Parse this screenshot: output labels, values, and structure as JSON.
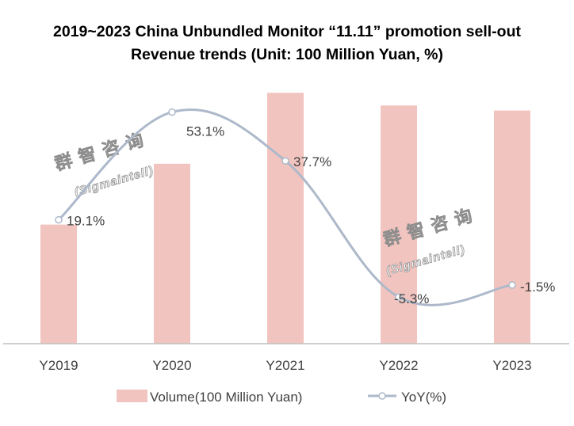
{
  "title_line1": "2019~2023 China Unbundled Monitor “11.11” promotion sell-out",
  "title_line2": "Revenue trends (Unit: 100 Million Yuan, %)",
  "watermark": {
    "chinese": "群智咨询",
    "english": "(Sigmaintell)"
  },
  "colors": {
    "bar": "#f2c4bf",
    "line": "#adb9ca",
    "marker_fill": "#ffffff",
    "axis": "#bfbfbf"
  },
  "chart_data": {
    "type": "bar",
    "categories": [
      "Y2019",
      "Y2020",
      "Y2021",
      "Y2022",
      "Y2023"
    ],
    "series": [
      {
        "name": "Volume(100 Million Yuan)",
        "type": "bar",
        "axis": "left",
        "values": [
          47,
          71,
          99,
          94,
          92
        ]
      },
      {
        "name": "YoY(%)",
        "type": "line",
        "axis": "right",
        "smooth": true,
        "marker": "circle",
        "values": [
          19.1,
          53.1,
          37.7,
          -5.3,
          -1.5
        ],
        "labels": [
          "19.1%",
          "53.1%",
          "37.7%",
          "-5.3%",
          "-1.5%"
        ]
      }
    ],
    "left_axis_range": [
      0,
      100
    ],
    "right_axis_range": [
      -20,
      60
    ],
    "grid": false,
    "legend_position": "bottom"
  }
}
